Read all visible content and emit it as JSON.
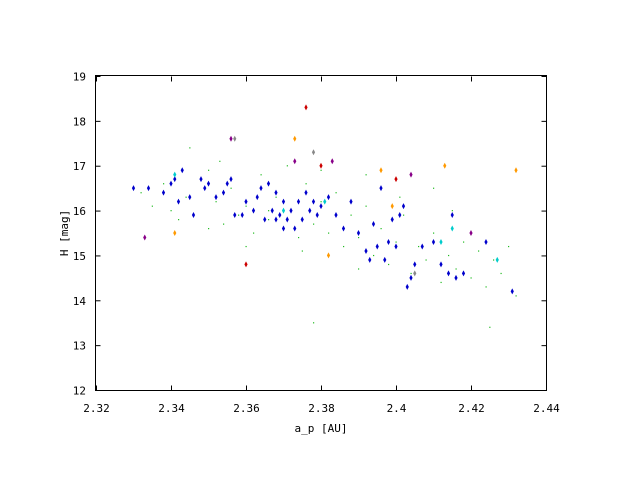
{
  "chart_data": {
    "type": "scatter",
    "title": "",
    "xlabel": "a_p [AU]",
    "ylabel": "H [mag]",
    "xlim": [
      2.32,
      2.44
    ],
    "ylim": [
      12,
      19
    ],
    "xticks": [
      "2.32",
      "2.34",
      "2.36",
      "2.38",
      "2.4",
      "2.42",
      "2.44"
    ],
    "yticks": [
      "12",
      "13",
      "14",
      "15",
      "16",
      "17",
      "18",
      "19"
    ],
    "grid": false,
    "legend": "none",
    "series": [
      {
        "color": "#22bb22",
        "marker": "dot",
        "points": [
          [
            2.332,
            16.4
          ],
          [
            2.335,
            16.1
          ],
          [
            2.338,
            16.6
          ],
          [
            2.34,
            16.0
          ],
          [
            2.342,
            15.8
          ],
          [
            2.344,
            16.3
          ],
          [
            2.346,
            15.9
          ],
          [
            2.348,
            16.7
          ],
          [
            2.35,
            15.6
          ],
          [
            2.352,
            16.2
          ],
          [
            2.354,
            15.7
          ],
          [
            2.356,
            16.5
          ],
          [
            2.358,
            15.9
          ],
          [
            2.36,
            16.1
          ],
          [
            2.362,
            15.5
          ],
          [
            2.364,
            16.8
          ],
          [
            2.366,
            15.8
          ],
          [
            2.368,
            16.3
          ],
          [
            2.37,
            15.6
          ],
          [
            2.372,
            16.0
          ],
          [
            2.374,
            15.4
          ],
          [
            2.376,
            16.6
          ],
          [
            2.378,
            15.7
          ],
          [
            2.38,
            16.2
          ],
          [
            2.382,
            15.5
          ],
          [
            2.384,
            16.4
          ],
          [
            2.386,
            15.2
          ],
          [
            2.388,
            15.9
          ],
          [
            2.39,
            15.4
          ],
          [
            2.392,
            16.1
          ],
          [
            2.394,
            15.0
          ],
          [
            2.396,
            15.6
          ],
          [
            2.398,
            14.8
          ],
          [
            2.4,
            15.3
          ],
          [
            2.402,
            15.9
          ],
          [
            2.404,
            14.6
          ],
          [
            2.406,
            15.2
          ],
          [
            2.408,
            14.9
          ],
          [
            2.41,
            15.5
          ],
          [
            2.412,
            14.4
          ],
          [
            2.414,
            15.0
          ],
          [
            2.416,
            14.7
          ],
          [
            2.418,
            15.3
          ],
          [
            2.42,
            14.5
          ],
          [
            2.422,
            15.1
          ],
          [
            2.424,
            14.3
          ],
          [
            2.426,
            14.9
          ],
          [
            2.428,
            14.6
          ],
          [
            2.43,
            15.2
          ],
          [
            2.432,
            14.1
          ],
          [
            2.353,
            17.1
          ],
          [
            2.345,
            17.4
          ],
          [
            2.371,
            17.0
          ],
          [
            2.392,
            16.8
          ],
          [
            2.41,
            16.5
          ],
          [
            2.36,
            15.2
          ],
          [
            2.375,
            15.1
          ],
          [
            2.39,
            14.7
          ],
          [
            2.378,
            13.5
          ],
          [
            2.425,
            13.4
          ],
          [
            2.35,
            16.9
          ],
          [
            2.366,
            16.0
          ],
          [
            2.38,
            16.9
          ],
          [
            2.401,
            16.3
          ],
          [
            2.415,
            16.0
          ]
        ]
      },
      {
        "color": "#0000cc",
        "marker": "diamond",
        "points": [
          [
            2.33,
            16.5
          ],
          [
            2.334,
            16.5
          ],
          [
            2.338,
            16.4
          ],
          [
            2.34,
            16.6
          ],
          [
            2.341,
            16.7
          ],
          [
            2.342,
            16.2
          ],
          [
            2.343,
            16.9
          ],
          [
            2.345,
            16.3
          ],
          [
            2.346,
            15.9
          ],
          [
            2.348,
            16.7
          ],
          [
            2.349,
            16.5
          ],
          [
            2.35,
            16.6
          ],
          [
            2.352,
            16.3
          ],
          [
            2.354,
            16.4
          ],
          [
            2.355,
            16.6
          ],
          [
            2.356,
            16.7
          ],
          [
            2.357,
            15.9
          ],
          [
            2.359,
            15.9
          ],
          [
            2.36,
            16.2
          ],
          [
            2.362,
            16.0
          ],
          [
            2.363,
            16.3
          ],
          [
            2.364,
            16.5
          ],
          [
            2.365,
            15.8
          ],
          [
            2.366,
            16.6
          ],
          [
            2.367,
            16.0
          ],
          [
            2.368,
            16.4
          ],
          [
            2.368,
            15.8
          ],
          [
            2.369,
            15.9
          ],
          [
            2.37,
            16.2
          ],
          [
            2.37,
            15.6
          ],
          [
            2.371,
            15.8
          ],
          [
            2.372,
            16.0
          ],
          [
            2.373,
            15.6
          ],
          [
            2.374,
            16.2
          ],
          [
            2.375,
            15.8
          ],
          [
            2.376,
            16.4
          ],
          [
            2.377,
            16.0
          ],
          [
            2.378,
            16.2
          ],
          [
            2.379,
            15.9
          ],
          [
            2.38,
            16.1
          ],
          [
            2.382,
            16.3
          ],
          [
            2.384,
            15.9
          ],
          [
            2.386,
            15.6
          ],
          [
            2.388,
            16.2
          ],
          [
            2.39,
            15.5
          ],
          [
            2.392,
            15.1
          ],
          [
            2.393,
            14.9
          ],
          [
            2.394,
            15.7
          ],
          [
            2.395,
            15.2
          ],
          [
            2.396,
            16.5
          ],
          [
            2.397,
            14.9
          ],
          [
            2.398,
            15.3
          ],
          [
            2.399,
            15.8
          ],
          [
            2.4,
            15.2
          ],
          [
            2.401,
            15.9
          ],
          [
            2.402,
            16.1
          ],
          [
            2.403,
            14.3
          ],
          [
            2.404,
            14.5
          ],
          [
            2.405,
            14.8
          ],
          [
            2.407,
            15.2
          ],
          [
            2.41,
            15.3
          ],
          [
            2.412,
            14.8
          ],
          [
            2.414,
            14.6
          ],
          [
            2.415,
            15.9
          ],
          [
            2.416,
            14.5
          ],
          [
            2.418,
            14.6
          ],
          [
            2.424,
            15.3
          ],
          [
            2.431,
            14.2
          ]
        ]
      },
      {
        "color": "#00cccc",
        "marker": "diamond",
        "points": [
          [
            2.341,
            16.8
          ],
          [
            2.37,
            16.0
          ],
          [
            2.381,
            16.2
          ],
          [
            2.412,
            15.3
          ],
          [
            2.415,
            15.6
          ],
          [
            2.427,
            14.9
          ]
        ]
      },
      {
        "color": "#ff9900",
        "marker": "diamond",
        "points": [
          [
            2.341,
            15.5
          ],
          [
            2.373,
            17.6
          ],
          [
            2.382,
            15.0
          ],
          [
            2.396,
            16.9
          ],
          [
            2.399,
            16.1
          ],
          [
            2.413,
            17.0
          ],
          [
            2.432,
            16.9
          ]
        ]
      },
      {
        "color": "#cc0000",
        "marker": "diamond",
        "points": [
          [
            2.376,
            18.3
          ],
          [
            2.36,
            14.8
          ],
          [
            2.4,
            16.7
          ],
          [
            2.38,
            17.0
          ]
        ]
      },
      {
        "color": "#880088",
        "marker": "diamond",
        "points": [
          [
            2.333,
            15.4
          ],
          [
            2.356,
            17.6
          ],
          [
            2.373,
            17.1
          ],
          [
            2.383,
            17.1
          ],
          [
            2.404,
            16.8
          ],
          [
            2.42,
            15.5
          ]
        ]
      },
      {
        "color": "#888888",
        "marker": "diamond",
        "points": [
          [
            2.378,
            17.3
          ],
          [
            2.357,
            17.6
          ],
          [
            2.405,
            14.6
          ]
        ]
      }
    ]
  }
}
